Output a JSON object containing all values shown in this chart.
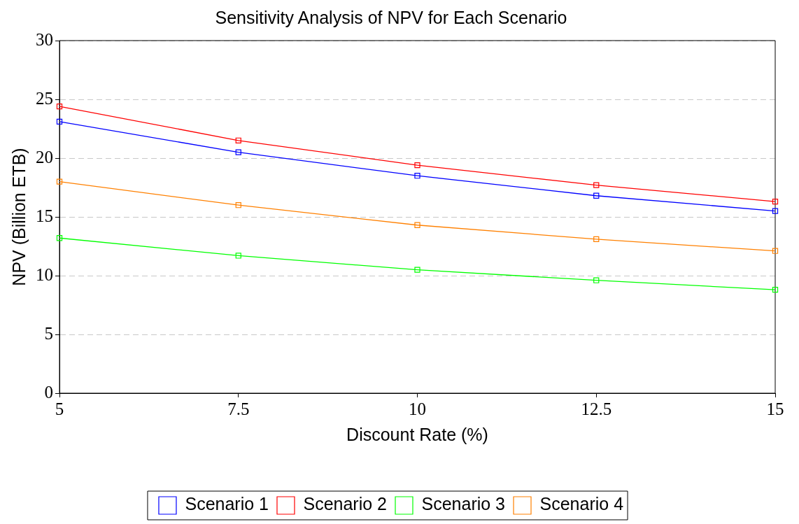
{
  "chart_data": {
    "type": "line",
    "title": "Sensitivity Analysis of NPV for Each Scenario",
    "xlabel": "Discount Rate (%)",
    "ylabel": "NPV (Billion ETB)",
    "x": [
      5,
      7.5,
      10,
      12.5,
      15
    ],
    "series": [
      {
        "name": "Scenario 1",
        "color": "#0000ff",
        "values": [
          23.1,
          20.5,
          18.5,
          16.8,
          15.5
        ]
      },
      {
        "name": "Scenario 2",
        "color": "#ff0000",
        "values": [
          24.4,
          21.5,
          19.4,
          17.7,
          16.3
        ]
      },
      {
        "name": "Scenario 3",
        "color": "#00ff00",
        "values": [
          13.2,
          11.7,
          10.5,
          9.6,
          8.8
        ]
      },
      {
        "name": "Scenario 4",
        "color": "#ff8000",
        "values": [
          18.0,
          16.0,
          14.3,
          13.1,
          12.1
        ]
      }
    ],
    "xlim": [
      5,
      15
    ],
    "xticks": [
      5,
      7.5,
      10,
      12.5,
      15
    ],
    "ylim": [
      0,
      30
    ],
    "yticks": [
      0,
      5,
      10,
      15,
      20,
      25,
      30
    ],
    "grid": "y",
    "legend": "bottom",
    "marker": "square",
    "line_style": "solid"
  }
}
